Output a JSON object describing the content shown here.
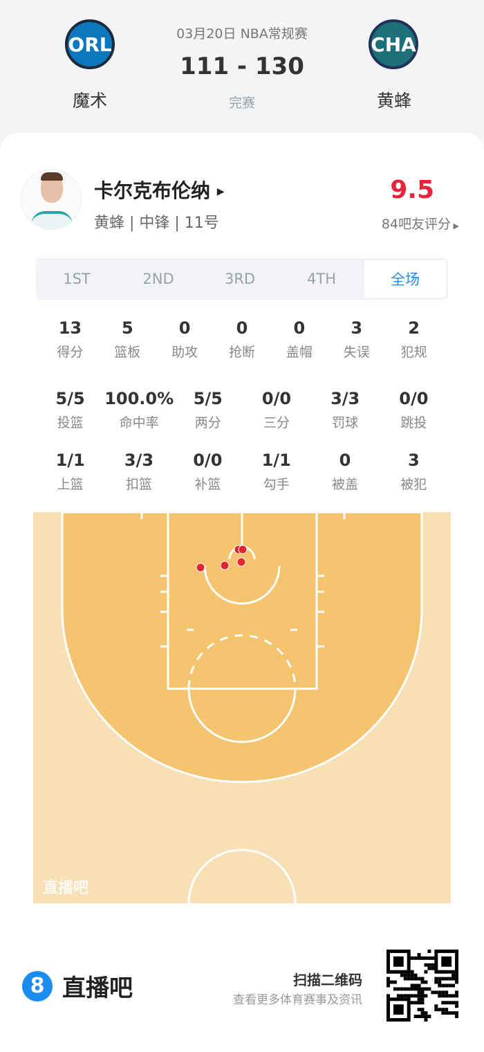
{
  "header": {
    "date_league": "03月20日 NBA常规赛",
    "score": "111 - 130",
    "status": "完赛",
    "home": {
      "abbr": "ORL",
      "name": "魔术",
      "color": "#0b77bd"
    },
    "away": {
      "abbr": "CHA",
      "name": "黄蜂",
      "color": "#1d6f7a"
    }
  },
  "player": {
    "name": "卡尔克布伦纳",
    "info": "黄蜂 | 中锋 | 11号",
    "rating": "9.5",
    "rating_label": "84吧友评分",
    "rating_color": "#e8243a"
  },
  "tabs": [
    {
      "label": "1ST"
    },
    {
      "label": "2ND"
    },
    {
      "label": "3RD"
    },
    {
      "label": "4TH"
    },
    {
      "label": "全场",
      "active": true
    }
  ],
  "stats_row1": [
    {
      "v": "13",
      "l": "得分"
    },
    {
      "v": "5",
      "l": "篮板"
    },
    {
      "v": "0",
      "l": "助攻"
    },
    {
      "v": "0",
      "l": "抢断"
    },
    {
      "v": "0",
      "l": "盖帽"
    },
    {
      "v": "3",
      "l": "失误"
    },
    {
      "v": "2",
      "l": "犯规"
    }
  ],
  "stats_row2": [
    {
      "v": "5/5",
      "l": "投篮"
    },
    {
      "v": "100.0%",
      "l": "命中率"
    },
    {
      "v": "5/5",
      "l": "两分"
    },
    {
      "v": "0/0",
      "l": "三分"
    },
    {
      "v": "3/3",
      "l": "罚球"
    },
    {
      "v": "0/0",
      "l": "跳投"
    }
  ],
  "stats_row3": [
    {
      "v": "1/1",
      "l": "上篮"
    },
    {
      "v": "3/3",
      "l": "扣篮"
    },
    {
      "v": "0/0",
      "l": "补篮"
    },
    {
      "v": "1/1",
      "l": "勾手"
    },
    {
      "v": "0",
      "l": "被盖"
    },
    {
      "v": "3",
      "l": "被犯"
    }
  ],
  "court": {
    "watermark": "直播吧",
    "shots_made": 5,
    "shot_color": "#e0262f"
  },
  "footer": {
    "brand": "直播吧",
    "brand_badge": "8",
    "scan": "扫描二维码",
    "sub": "查看更多体育赛事及资讯",
    "brand_color": "#1a8cf0"
  }
}
